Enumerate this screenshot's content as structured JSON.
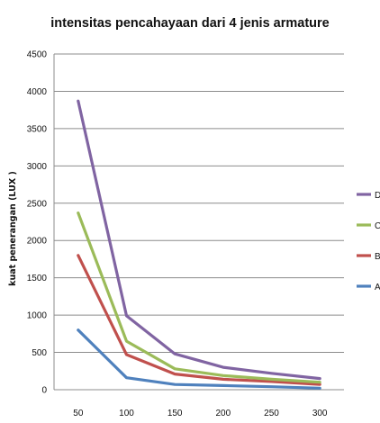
{
  "chart_data": {
    "type": "line",
    "title": "intensitas  pencahayaan dari 4 jenis armature",
    "xlabel": "",
    "ylabel": "kuat penerangan (LUX )",
    "x": [
      50,
      100,
      150,
      200,
      250,
      300
    ],
    "x_tick_labels": [
      "50",
      "100",
      "150",
      "200",
      "250",
      "300"
    ],
    "ylim": [
      0,
      4500
    ],
    "y_ticks": [
      0,
      500,
      1000,
      1500,
      2000,
      2500,
      3000,
      3500,
      4000,
      4500
    ],
    "grid": true,
    "legend_position": "right",
    "series": [
      {
        "name": "D",
        "color": "#8064a2",
        "values": [
          3870,
          990,
          480,
          300,
          220,
          150
        ]
      },
      {
        "name": "C",
        "color": "#9bbb59",
        "values": [
          2370,
          650,
          280,
          190,
          140,
          100
        ]
      },
      {
        "name": "B",
        "color": "#c0504d",
        "values": [
          1800,
          470,
          210,
          140,
          110,
          70
        ]
      },
      {
        "name": "A",
        "color": "#4f81bd",
        "values": [
          800,
          160,
          70,
          55,
          40,
          20
        ]
      }
    ]
  }
}
